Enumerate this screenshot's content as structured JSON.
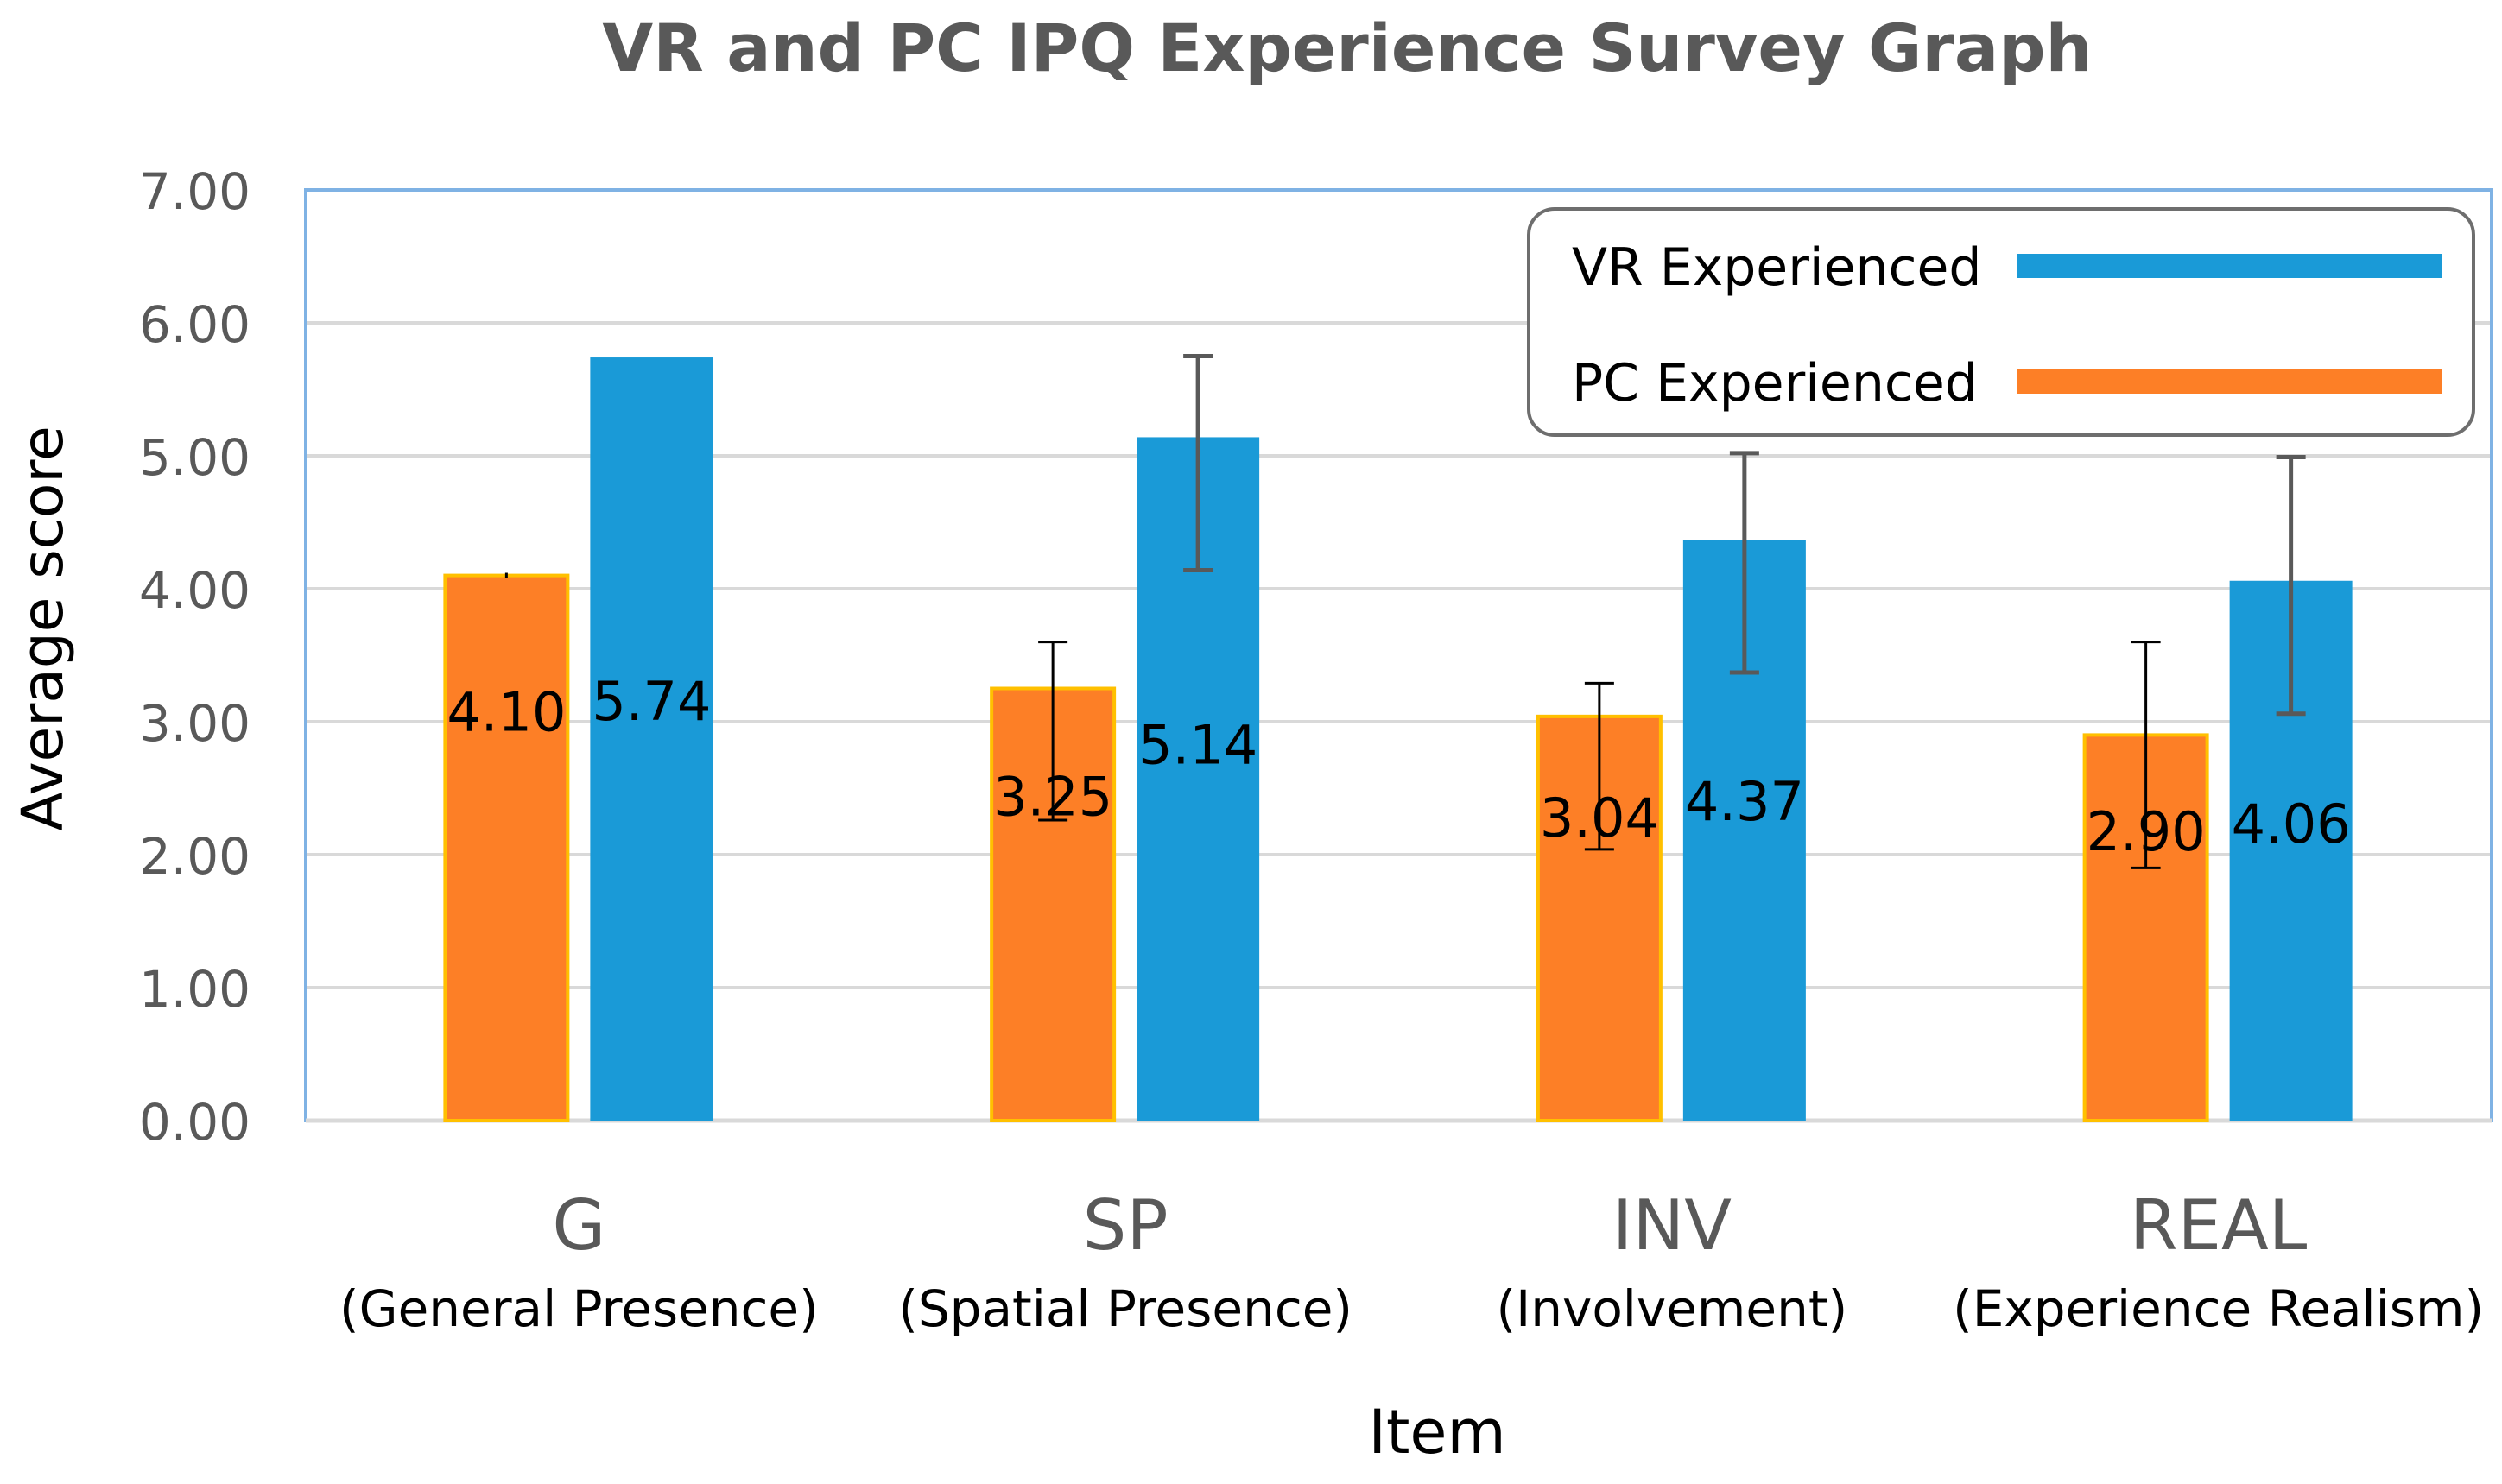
{
  "chart_data": {
    "type": "bar",
    "title": "VR and PC IPQ Experience Survey Graph",
    "xlabel": "Item",
    "ylabel": "Average score",
    "ylim": [
      0,
      7
    ],
    "yticks": [
      "0.00",
      "1.00",
      "2.00",
      "3.00",
      "4.00",
      "5.00",
      "6.00",
      "7.00"
    ],
    "grid": true,
    "legend_position": "top-right",
    "categories": [
      {
        "code": "G",
        "name": "(General Presence)"
      },
      {
        "code": "SP",
        "name": "(Spatial Presence)"
      },
      {
        "code": "INV",
        "name": "(Involvement)"
      },
      {
        "code": "REAL",
        "name": "(Experience Realism)"
      }
    ],
    "series": [
      {
        "name": "PC Experienced",
        "color": "#FD7F26",
        "values": [
          4.1,
          3.25,
          3.04,
          2.9
        ],
        "labels": [
          "4.10",
          "3.25",
          "3.04",
          "2.90"
        ],
        "error_low": [
          4.08,
          2.26,
          2.04,
          1.9
        ],
        "error_high": [
          4.12,
          3.6,
          3.29,
          3.6
        ]
      },
      {
        "name": "VR Experienced",
        "color": "#1A9AD7",
        "values": [
          5.74,
          5.14,
          4.37,
          4.06
        ],
        "labels": [
          "5.74",
          "5.14",
          "4.37",
          "4.06"
        ],
        "error_low": [
          null,
          4.14,
          3.37,
          3.06
        ],
        "error_high": [
          null,
          5.75,
          5.02,
          4.99
        ]
      }
    ]
  }
}
